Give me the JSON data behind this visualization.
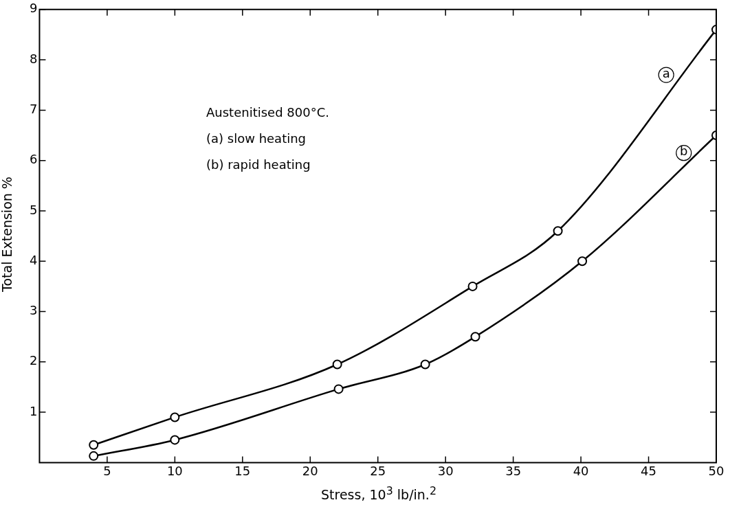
{
  "chart_data": {
    "type": "line",
    "xlabel": "Stress, 10$^{3}$ lb/in.$^{2}$",
    "ylabel": "Total Extension %",
    "xlim": [
      0,
      50
    ],
    "xticks": [
      5,
      10,
      15,
      20,
      25,
      30,
      35,
      40,
      45,
      50
    ],
    "ylim": [
      0,
      9
    ],
    "yticks": [
      1,
      2,
      3,
      4,
      5,
      6,
      7,
      8,
      9
    ],
    "series": [
      {
        "color": "#000000",
        "x": [
          4,
          10,
          22,
          32,
          38.3,
          50
        ],
        "values": [
          0.35,
          0.9,
          1.95,
          3.5,
          4.6,
          8.6
        ]
      },
      {
        "color": "#000000",
        "x": [
          4,
          10,
          22.1,
          28.5,
          32.2,
          40.1,
          50
        ],
        "values": [
          0.13,
          0.45,
          1.46,
          1.95,
          2.5,
          4.0,
          6.5
        ]
      }
    ],
    "annotations": [
      "Austenitised 800°C.",
      "(a)  slow heating",
      "(b)  rapid heating",
      {
        "text": "a",
        "x": 46.3,
        "y": 7.7
      },
      {
        "text": "b",
        "x": 47.6,
        "y": 6.15
      }
    ],
    "marker": "circle",
    "line_style": "solid",
    "grid": false,
    "legend": false
  }
}
